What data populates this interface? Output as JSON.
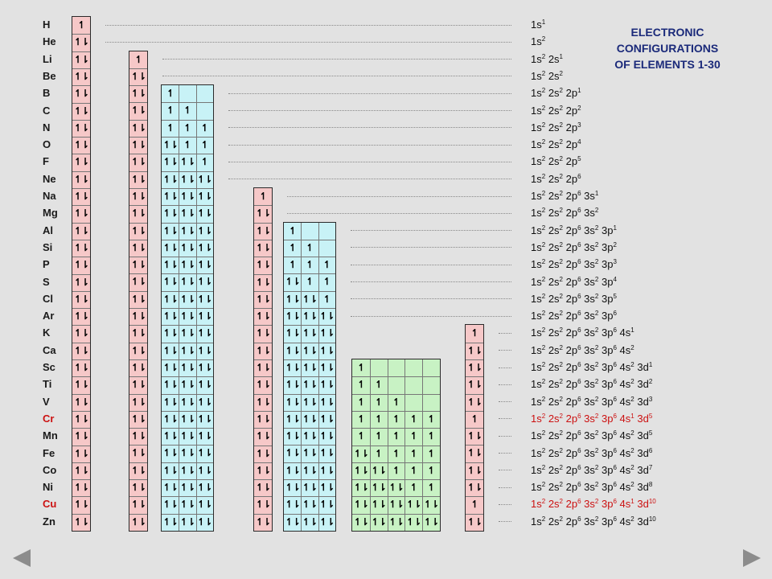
{
  "title_lines": [
    "ELECTRONIC",
    "CONFIGURATIONS",
    "OF ELEMENTS 1-30"
  ],
  "colors": {
    "s_box": "#f6c8c8",
    "p_box": "#c8f2f6",
    "d_box": "#c8f2c4",
    "highlight": "#cc1111",
    "title": "#1b2a7a"
  },
  "icons": {
    "prev": "left-arrow-icon",
    "next": "right-arrow-icon"
  },
  "elements": [
    {
      "symbol": "H",
      "config": [
        [
          "1s",
          "1"
        ]
      ],
      "orbitals": {
        "1s": [
          "1"
        ]
      }
    },
    {
      "symbol": "He",
      "config": [
        [
          "1s",
          "2"
        ]
      ],
      "orbitals": {
        "1s": [
          "1l"
        ]
      }
    },
    {
      "symbol": "Li",
      "config": [
        [
          "1s",
          "2"
        ],
        [
          "2s",
          "1"
        ]
      ],
      "orbitals": {
        "1s": [
          "1l"
        ],
        "2s": [
          "1"
        ]
      }
    },
    {
      "symbol": "Be",
      "config": [
        [
          "1s",
          "2"
        ],
        [
          "2s",
          "2"
        ]
      ],
      "orbitals": {
        "1s": [
          "1l"
        ],
        "2s": [
          "1l"
        ]
      }
    },
    {
      "symbol": "B",
      "config": [
        [
          "1s",
          "2"
        ],
        [
          "2s",
          "2"
        ],
        [
          "2p",
          "1"
        ]
      ],
      "orbitals": {
        "1s": [
          "1l"
        ],
        "2s": [
          "1l"
        ],
        "2p": [
          "1",
          "",
          ""
        ]
      }
    },
    {
      "symbol": "C",
      "config": [
        [
          "1s",
          "2"
        ],
        [
          "2s",
          "2"
        ],
        [
          "2p",
          "2"
        ]
      ],
      "orbitals": {
        "1s": [
          "1l"
        ],
        "2s": [
          "1l"
        ],
        "2p": [
          "1",
          "1",
          ""
        ]
      }
    },
    {
      "symbol": "N",
      "config": [
        [
          "1s",
          "2"
        ],
        [
          "2s",
          "2"
        ],
        [
          "2p",
          "3"
        ]
      ],
      "orbitals": {
        "1s": [
          "1l"
        ],
        "2s": [
          "1l"
        ],
        "2p": [
          "1",
          "1",
          "1"
        ]
      }
    },
    {
      "symbol": "O",
      "config": [
        [
          "1s",
          "2"
        ],
        [
          "2s",
          "2"
        ],
        [
          "2p",
          "4"
        ]
      ],
      "orbitals": {
        "1s": [
          "1l"
        ],
        "2s": [
          "1l"
        ],
        "2p": [
          "1l",
          "1",
          "1"
        ]
      }
    },
    {
      "symbol": "F",
      "config": [
        [
          "1s",
          "2"
        ],
        [
          "2s",
          "2"
        ],
        [
          "2p",
          "5"
        ]
      ],
      "orbitals": {
        "1s": [
          "1l"
        ],
        "2s": [
          "1l"
        ],
        "2p": [
          "1l",
          "1l",
          "1"
        ]
      }
    },
    {
      "symbol": "Ne",
      "config": [
        [
          "1s",
          "2"
        ],
        [
          "2s",
          "2"
        ],
        [
          "2p",
          "6"
        ]
      ],
      "orbitals": {
        "1s": [
          "1l"
        ],
        "2s": [
          "1l"
        ],
        "2p": [
          "1l",
          "1l",
          "1l"
        ]
      }
    },
    {
      "symbol": "Na",
      "config": [
        [
          "1s",
          "2"
        ],
        [
          "2s",
          "2"
        ],
        [
          "2p",
          "6"
        ],
        [
          "3s",
          "1"
        ]
      ],
      "orbitals": {
        "1s": [
          "1l"
        ],
        "2s": [
          "1l"
        ],
        "2p": [
          "1l",
          "1l",
          "1l"
        ],
        "3s": [
          "1"
        ]
      }
    },
    {
      "symbol": "Mg",
      "config": [
        [
          "1s",
          "2"
        ],
        [
          "2s",
          "2"
        ],
        [
          "2p",
          "6"
        ],
        [
          "3s",
          "2"
        ]
      ],
      "orbitals": {
        "1s": [
          "1l"
        ],
        "2s": [
          "1l"
        ],
        "2p": [
          "1l",
          "1l",
          "1l"
        ],
        "3s": [
          "1l"
        ]
      }
    },
    {
      "symbol": "Al",
      "config": [
        [
          "1s",
          "2"
        ],
        [
          "2s",
          "2"
        ],
        [
          "2p",
          "6"
        ],
        [
          "3s",
          "2"
        ],
        [
          "3p",
          "1"
        ]
      ],
      "orbitals": {
        "1s": [
          "1l"
        ],
        "2s": [
          "1l"
        ],
        "2p": [
          "1l",
          "1l",
          "1l"
        ],
        "3s": [
          "1l"
        ],
        "3p": [
          "1",
          "",
          ""
        ]
      }
    },
    {
      "symbol": "Si",
      "config": [
        [
          "1s",
          "2"
        ],
        [
          "2s",
          "2"
        ],
        [
          "2p",
          "6"
        ],
        [
          "3s",
          "2"
        ],
        [
          "3p",
          "2"
        ]
      ],
      "orbitals": {
        "1s": [
          "1l"
        ],
        "2s": [
          "1l"
        ],
        "2p": [
          "1l",
          "1l",
          "1l"
        ],
        "3s": [
          "1l"
        ],
        "3p": [
          "1",
          "1",
          ""
        ]
      }
    },
    {
      "symbol": "P",
      "config": [
        [
          "1s",
          "2"
        ],
        [
          "2s",
          "2"
        ],
        [
          "2p",
          "6"
        ],
        [
          "3s",
          "2"
        ],
        [
          "3p",
          "3"
        ]
      ],
      "orbitals": {
        "1s": [
          "1l"
        ],
        "2s": [
          "1l"
        ],
        "2p": [
          "1l",
          "1l",
          "1l"
        ],
        "3s": [
          "1l"
        ],
        "3p": [
          "1",
          "1",
          "1"
        ]
      }
    },
    {
      "symbol": "S",
      "config": [
        [
          "1s",
          "2"
        ],
        [
          "2s",
          "2"
        ],
        [
          "2p",
          "6"
        ],
        [
          "3s",
          "2"
        ],
        [
          "3p",
          "4"
        ]
      ],
      "orbitals": {
        "1s": [
          "1l"
        ],
        "2s": [
          "1l"
        ],
        "2p": [
          "1l",
          "1l",
          "1l"
        ],
        "3s": [
          "1l"
        ],
        "3p": [
          "1l",
          "1",
          "1"
        ]
      }
    },
    {
      "symbol": "Cl",
      "config": [
        [
          "1s",
          "2"
        ],
        [
          "2s",
          "2"
        ],
        [
          "2p",
          "6"
        ],
        [
          "3s",
          "2"
        ],
        [
          "3p",
          "5"
        ]
      ],
      "orbitals": {
        "1s": [
          "1l"
        ],
        "2s": [
          "1l"
        ],
        "2p": [
          "1l",
          "1l",
          "1l"
        ],
        "3s": [
          "1l"
        ],
        "3p": [
          "1l",
          "1l",
          "1"
        ]
      }
    },
    {
      "symbol": "Ar",
      "config": [
        [
          "1s",
          "2"
        ],
        [
          "2s",
          "2"
        ],
        [
          "2p",
          "6"
        ],
        [
          "3s",
          "2"
        ],
        [
          "3p",
          "6"
        ]
      ],
      "orbitals": {
        "1s": [
          "1l"
        ],
        "2s": [
          "1l"
        ],
        "2p": [
          "1l",
          "1l",
          "1l"
        ],
        "3s": [
          "1l"
        ],
        "3p": [
          "1l",
          "1l",
          "1l"
        ]
      }
    },
    {
      "symbol": "K",
      "config": [
        [
          "1s",
          "2"
        ],
        [
          "2s",
          "2"
        ],
        [
          "2p",
          "6"
        ],
        [
          "3s",
          "2"
        ],
        [
          "3p",
          "6"
        ],
        [
          "4s",
          "1"
        ]
      ],
      "orbitals": {
        "1s": [
          "1l"
        ],
        "2s": [
          "1l"
        ],
        "2p": [
          "1l",
          "1l",
          "1l"
        ],
        "3s": [
          "1l"
        ],
        "3p": [
          "1l",
          "1l",
          "1l"
        ],
        "4s": [
          "1"
        ]
      }
    },
    {
      "symbol": "Ca",
      "config": [
        [
          "1s",
          "2"
        ],
        [
          "2s",
          "2"
        ],
        [
          "2p",
          "6"
        ],
        [
          "3s",
          "2"
        ],
        [
          "3p",
          "6"
        ],
        [
          "4s",
          "2"
        ]
      ],
      "orbitals": {
        "1s": [
          "1l"
        ],
        "2s": [
          "1l"
        ],
        "2p": [
          "1l",
          "1l",
          "1l"
        ],
        "3s": [
          "1l"
        ],
        "3p": [
          "1l",
          "1l",
          "1l"
        ],
        "4s": [
          "1l"
        ]
      }
    },
    {
      "symbol": "Sc",
      "config": [
        [
          "1s",
          "2"
        ],
        [
          "2s",
          "2"
        ],
        [
          "2p",
          "6"
        ],
        [
          "3s",
          "2"
        ],
        [
          "3p",
          "6"
        ],
        [
          "4s",
          "2"
        ],
        [
          "3d",
          "1"
        ]
      ],
      "orbitals": {
        "1s": [
          "1l"
        ],
        "2s": [
          "1l"
        ],
        "2p": [
          "1l",
          "1l",
          "1l"
        ],
        "3s": [
          "1l"
        ],
        "3p": [
          "1l",
          "1l",
          "1l"
        ],
        "3d": [
          "1",
          "",
          "",
          "",
          ""
        ],
        "4s": [
          "1l"
        ]
      }
    },
    {
      "symbol": "Ti",
      "config": [
        [
          "1s",
          "2"
        ],
        [
          "2s",
          "2"
        ],
        [
          "2p",
          "6"
        ],
        [
          "3s",
          "2"
        ],
        [
          "3p",
          "6"
        ],
        [
          "4s",
          "2"
        ],
        [
          "3d",
          "2"
        ]
      ],
      "orbitals": {
        "1s": [
          "1l"
        ],
        "2s": [
          "1l"
        ],
        "2p": [
          "1l",
          "1l",
          "1l"
        ],
        "3s": [
          "1l"
        ],
        "3p": [
          "1l",
          "1l",
          "1l"
        ],
        "3d": [
          "1",
          "1",
          "",
          "",
          ""
        ],
        "4s": [
          "1l"
        ]
      }
    },
    {
      "symbol": "V",
      "config": [
        [
          "1s",
          "2"
        ],
        [
          "2s",
          "2"
        ],
        [
          "2p",
          "6"
        ],
        [
          "3s",
          "2"
        ],
        [
          "3p",
          "6"
        ],
        [
          "4s",
          "2"
        ],
        [
          "3d",
          "3"
        ]
      ],
      "orbitals": {
        "1s": [
          "1l"
        ],
        "2s": [
          "1l"
        ],
        "2p": [
          "1l",
          "1l",
          "1l"
        ],
        "3s": [
          "1l"
        ],
        "3p": [
          "1l",
          "1l",
          "1l"
        ],
        "3d": [
          "1",
          "1",
          "1",
          "",
          ""
        ],
        "4s": [
          "1l"
        ]
      }
    },
    {
      "symbol": "Cr",
      "highlight": true,
      "config": [
        [
          "1s",
          "2"
        ],
        [
          "2s",
          "2"
        ],
        [
          "2p",
          "6"
        ],
        [
          "3s",
          "2"
        ],
        [
          "3p",
          "6"
        ],
        [
          "4s",
          "1"
        ],
        [
          "3d",
          "5"
        ]
      ],
      "orbitals": {
        "1s": [
          "1l"
        ],
        "2s": [
          "1l"
        ],
        "2p": [
          "1l",
          "1l",
          "1l"
        ],
        "3s": [
          "1l"
        ],
        "3p": [
          "1l",
          "1l",
          "1l"
        ],
        "3d": [
          "1",
          "1",
          "1",
          "1",
          "1"
        ],
        "4s": [
          "1"
        ]
      }
    },
    {
      "symbol": "Mn",
      "config": [
        [
          "1s",
          "2"
        ],
        [
          "2s",
          "2"
        ],
        [
          "2p",
          "6"
        ],
        [
          "3s",
          "2"
        ],
        [
          "3p",
          "6"
        ],
        [
          "4s",
          "2"
        ],
        [
          "3d",
          "5"
        ]
      ],
      "orbitals": {
        "1s": [
          "1l"
        ],
        "2s": [
          "1l"
        ],
        "2p": [
          "1l",
          "1l",
          "1l"
        ],
        "3s": [
          "1l"
        ],
        "3p": [
          "1l",
          "1l",
          "1l"
        ],
        "3d": [
          "1",
          "1",
          "1",
          "1",
          "1"
        ],
        "4s": [
          "1l"
        ]
      }
    },
    {
      "symbol": "Fe",
      "config": [
        [
          "1s",
          "2"
        ],
        [
          "2s",
          "2"
        ],
        [
          "2p",
          "6"
        ],
        [
          "3s",
          "2"
        ],
        [
          "3p",
          "6"
        ],
        [
          "4s",
          "2"
        ],
        [
          "3d",
          "6"
        ]
      ],
      "orbitals": {
        "1s": [
          "1l"
        ],
        "2s": [
          "1l"
        ],
        "2p": [
          "1l",
          "1l",
          "1l"
        ],
        "3s": [
          "1l"
        ],
        "3p": [
          "1l",
          "1l",
          "1l"
        ],
        "3d": [
          "1l",
          "1",
          "1",
          "1",
          "1"
        ],
        "4s": [
          "1l"
        ]
      }
    },
    {
      "symbol": "Co",
      "config": [
        [
          "1s",
          "2"
        ],
        [
          "2s",
          "2"
        ],
        [
          "2p",
          "6"
        ],
        [
          "3s",
          "2"
        ],
        [
          "3p",
          "6"
        ],
        [
          "4s",
          "2"
        ],
        [
          "3d",
          "7"
        ]
      ],
      "orbitals": {
        "1s": [
          "1l"
        ],
        "2s": [
          "1l"
        ],
        "2p": [
          "1l",
          "1l",
          "1l"
        ],
        "3s": [
          "1l"
        ],
        "3p": [
          "1l",
          "1l",
          "1l"
        ],
        "3d": [
          "1l",
          "1l",
          "1",
          "1",
          "1"
        ],
        "4s": [
          "1l"
        ]
      }
    },
    {
      "symbol": "Ni",
      "config": [
        [
          "1s",
          "2"
        ],
        [
          "2s",
          "2"
        ],
        [
          "2p",
          "6"
        ],
        [
          "3s",
          "2"
        ],
        [
          "3p",
          "6"
        ],
        [
          "4s",
          "2"
        ],
        [
          "3d",
          "8"
        ]
      ],
      "orbitals": {
        "1s": [
          "1l"
        ],
        "2s": [
          "1l"
        ],
        "2p": [
          "1l",
          "1l",
          "1l"
        ],
        "3s": [
          "1l"
        ],
        "3p": [
          "1l",
          "1l",
          "1l"
        ],
        "3d": [
          "1l",
          "1l",
          "1l",
          "1",
          "1"
        ],
        "4s": [
          "1l"
        ]
      }
    },
    {
      "symbol": "Cu",
      "highlight": true,
      "config": [
        [
          "1s",
          "2"
        ],
        [
          "2s",
          "2"
        ],
        [
          "2p",
          "6"
        ],
        [
          "3s",
          "2"
        ],
        [
          "3p",
          "6"
        ],
        [
          "4s",
          "1"
        ],
        [
          "3d",
          "10"
        ]
      ],
      "orbitals": {
        "1s": [
          "1l"
        ],
        "2s": [
          "1l"
        ],
        "2p": [
          "1l",
          "1l",
          "1l"
        ],
        "3s": [
          "1l"
        ],
        "3p": [
          "1l",
          "1l",
          "1l"
        ],
        "3d": [
          "1l",
          "1l",
          "1l",
          "1l",
          "1l"
        ],
        "4s": [
          "1"
        ]
      }
    },
    {
      "symbol": "Zn",
      "config": [
        [
          "1s",
          "2"
        ],
        [
          "2s",
          "2"
        ],
        [
          "2p",
          "6"
        ],
        [
          "3s",
          "2"
        ],
        [
          "3p",
          "6"
        ],
        [
          "4s",
          "2"
        ],
        [
          "3d",
          "10"
        ]
      ],
      "orbitals": {
        "1s": [
          "1l"
        ],
        "2s": [
          "1l"
        ],
        "2p": [
          "1l",
          "1l",
          "1l"
        ],
        "3s": [
          "1l"
        ],
        "3p": [
          "1l",
          "1l",
          "1l"
        ],
        "3d": [
          "1l",
          "1l",
          "1l",
          "1l",
          "1l"
        ],
        "4s": [
          "1l"
        ]
      }
    }
  ]
}
